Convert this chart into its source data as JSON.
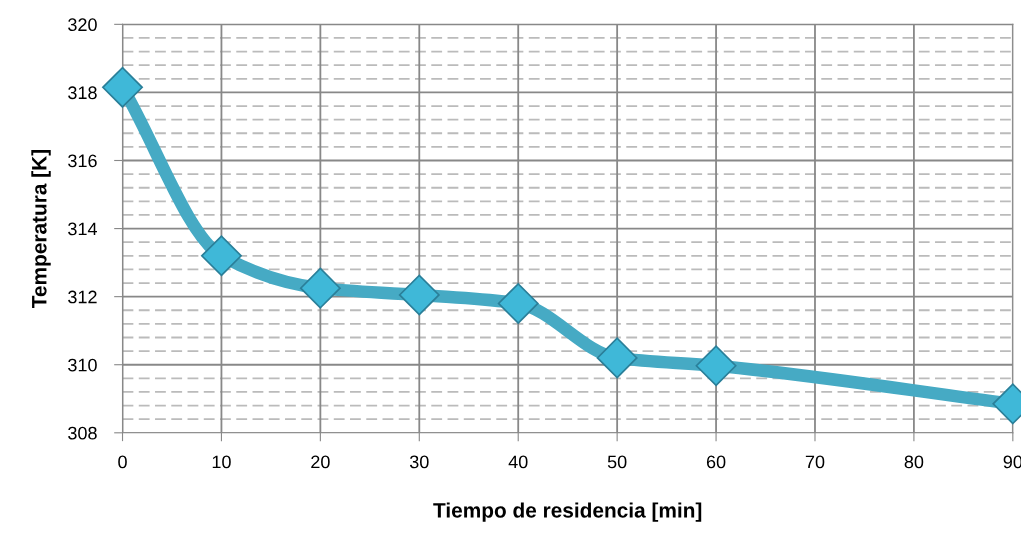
{
  "chart_data": {
    "type": "line",
    "xlabel": "Tiempo de residencia [min]",
    "ylabel": "Temperatura [K]",
    "x": [
      0,
      10,
      20,
      30,
      40,
      50,
      60,
      90
    ],
    "series": [
      {
        "color": "#46aac4",
        "values": [
          318.15,
          313.2,
          312.25,
          312.05,
          311.8,
          310.2,
          309.97,
          308.85
        ]
      }
    ],
    "xlim": [
      0,
      90
    ],
    "xticks": [
      0,
      10,
      20,
      30,
      40,
      50,
      60,
      70,
      80,
      90
    ],
    "ylim": [
      308,
      320
    ],
    "yticks": [
      308,
      {
        "value": 308.4,
        "label": null
      },
      {
        "value": 308.8,
        "label": null
      },
      {
        "value": 309.2,
        "label": null
      },
      {
        "value": 309.6,
        "label": null
      },
      310,
      {
        "value": 310.4,
        "label": null
      },
      {
        "value": 310.8,
        "label": null
      },
      {
        "value": 311.2,
        "label": null
      },
      {
        "value": 311.6,
        "label": null
      },
      312,
      {
        "value": 312.4,
        "label": null
      },
      {
        "value": 312.8,
        "label": null
      },
      {
        "value": 313.2,
        "label": null
      },
      {
        "value": 313.6,
        "label": null
      },
      314,
      {
        "value": 314.4,
        "label": null
      },
      {
        "value": 314.8,
        "label": null
      },
      {
        "value": 315.2,
        "label": null
      },
      {
        "value": 315.6,
        "label": null
      },
      316,
      {
        "value": 316.4,
        "label": null
      },
      {
        "value": 316.8,
        "label": null
      },
      {
        "value": 317.2,
        "label": null
      },
      {
        "value": 317.6,
        "label": null
      },
      318,
      {
        "value": 318.4,
        "label": null
      },
      {
        "value": 318.8,
        "label": null
      },
      {
        "value": 319.2,
        "label": null
      },
      {
        "value": 319.6,
        "label": null
      },
      320
    ],
    "grid": true,
    "marker": "diamond",
    "line_style": "solid",
    "legend": false
  }
}
